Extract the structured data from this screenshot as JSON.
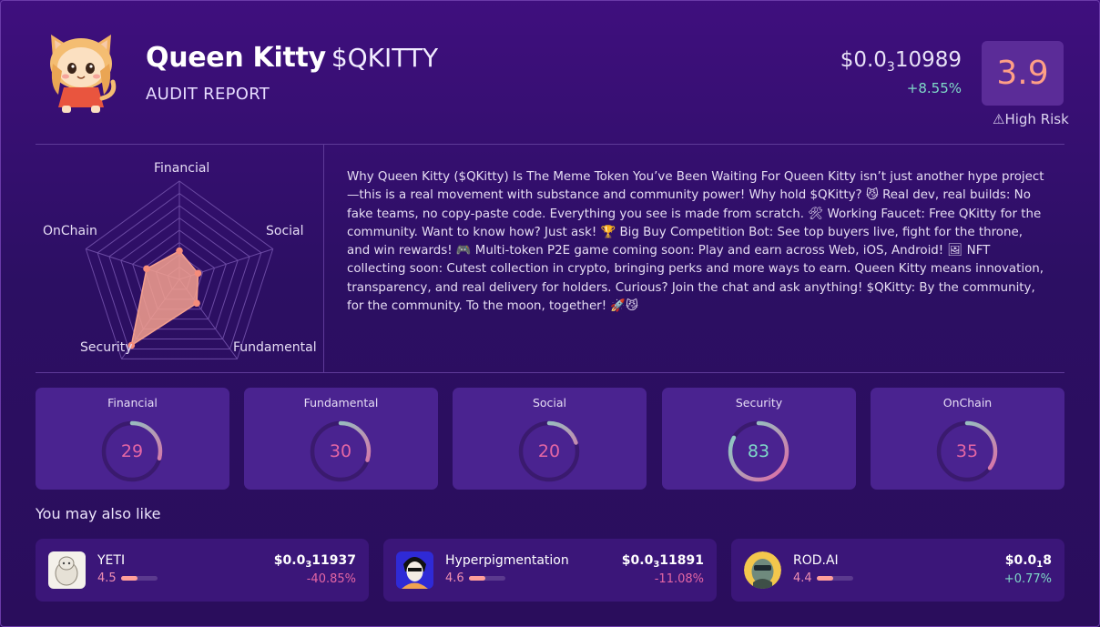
{
  "token": {
    "name": "Queen Kitty",
    "ticker": "$QKITTY",
    "subtitle": "AUDIT REPORT",
    "price_prefix": "$0.0",
    "price_sub": "3",
    "price_suffix": "10989",
    "change": "+8.55%",
    "score": "3.9",
    "risk": "High Risk",
    "risk_icon": "warning-icon"
  },
  "radar": {
    "labels": [
      "Financial",
      "Social",
      "Fundamental",
      "Security",
      "OnChain"
    ],
    "values": [
      29,
      20,
      30,
      83,
      35
    ],
    "max": 100,
    "fill_color": "#f4a08e"
  },
  "description": "Why Queen Kitty ($QKitty) Is The Meme Token You’ve Been Waiting For Queen Kitty isn’t just another hype project—this is a real movement with substance and community power! Why hold $QKitty? 😼 Real dev, real builds: No fake teams, no copy-paste code. Everything you see is made from scratch. 🛠 Working Faucet: Free QKitty for the community. Want to know how? Just ask! 🏆 Big Buy Competition Bot: See top buyers live, fight for the throne, and win rewards! 🎮 Multi-token P2E game coming soon: Play and earn across Web, iOS, Android! 🖼 NFT collecting soon: Cutest collection in crypto, bringing perks and more ways to earn. Queen Kitty means innovation, transparency, and real delivery for holders. Curious? Join the chat and ask anything! $QKitty: By the community, for the community. To the moon, together! 🚀😼",
  "scores": [
    {
      "label": "Financial",
      "value": 29
    },
    {
      "label": "Fundamental",
      "value": 30
    },
    {
      "label": "Social",
      "value": 20
    },
    {
      "label": "Security",
      "value": 83
    },
    {
      "label": "OnChain",
      "value": 35
    }
  ],
  "recommendations_title": "You may also like",
  "recommendations": [
    {
      "name": "YETI",
      "score": "4.5",
      "score_fraction": 0.45,
      "price_prefix": "$0.0",
      "price_sub": "3",
      "price_suffix": "11937",
      "change": "-40.85%",
      "direction": "neg"
    },
    {
      "name": "Hyperpigmentation",
      "score": "4.6",
      "score_fraction": 0.46,
      "price_prefix": "$0.0",
      "price_sub": "3",
      "price_suffix": "11891",
      "change": "-11.08%",
      "direction": "neg"
    },
    {
      "name": "ROD.AI",
      "score": "4.4",
      "score_fraction": 0.44,
      "price_prefix": "$0.0",
      "price_sub": "1",
      "price_suffix": "8",
      "change": "+0.77%",
      "direction": "pos"
    }
  ],
  "colors": {
    "accent_pink": "#e466a4",
    "accent_teal": "#7fd9c8",
    "score_orange": "#ff9f86"
  }
}
